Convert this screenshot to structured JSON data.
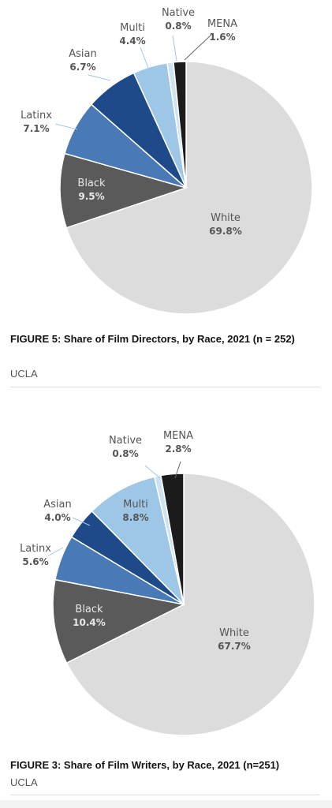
{
  "chart_data": [
    {
      "type": "pie",
      "title": "FIGURE 5: Share of Film Directors, by Race, 2021 (n = 252)",
      "source": "UCLA",
      "slices": [
        {
          "label": "White",
          "value_text": "69.8%",
          "value": 69.8,
          "color": "#dcdcdc",
          "text_color": "#555555"
        },
        {
          "label": "Black",
          "value_text": "9.5%",
          "value": 9.5,
          "color": "#5a5a5a",
          "text_color": "#e8e8e8"
        },
        {
          "label": "Latinx",
          "value_text": "7.1%",
          "value": 7.1,
          "color": "#4a7ab5",
          "text_color": "#555555"
        },
        {
          "label": "Asian",
          "value_text": "6.7%",
          "value": 6.7,
          "color": "#1f4a8a",
          "text_color": "#555555"
        },
        {
          "label": "Multi",
          "value_text": "4.4%",
          "value": 4.4,
          "color": "#9ec6e6",
          "text_color": "#555555"
        },
        {
          "label": "Native",
          "value_text": "0.8%",
          "value": 0.8,
          "color": "#cde3f1",
          "text_color": "#555555"
        },
        {
          "label": "MENA",
          "value_text": "1.6%",
          "value": 1.6,
          "color": "#1b1b1b",
          "text_color": "#555555"
        }
      ]
    },
    {
      "type": "pie",
      "title": "FIGURE 3: Share of Film Writers, by Race, 2021 (n=251)",
      "source": "UCLA",
      "slices": [
        {
          "label": "White",
          "value_text": "67.7%",
          "value": 67.7,
          "color": "#dcdcdc",
          "text_color": "#555555"
        },
        {
          "label": "Black",
          "value_text": "10.4%",
          "value": 10.4,
          "color": "#5a5a5a",
          "text_color": "#e8e8e8"
        },
        {
          "label": "Latinx",
          "value_text": "5.6%",
          "value": 5.6,
          "color": "#4a7ab5",
          "text_color": "#555555"
        },
        {
          "label": "Asian",
          "value_text": "4.0%",
          "value": 4.0,
          "color": "#1f4a8a",
          "text_color": "#555555"
        },
        {
          "label": "Multi",
          "value_text": "8.8%",
          "value": 8.8,
          "color": "#9ec6e6",
          "text_color": "#555555"
        },
        {
          "label": "Native",
          "value_text": "0.8%",
          "value": 0.8,
          "color": "#cde3f1",
          "text_color": "#555555"
        },
        {
          "label": "MENA",
          "value_text": "2.8%",
          "value": 2.8,
          "color": "#1b1b1b",
          "text_color": "#555555"
        }
      ]
    }
  ]
}
